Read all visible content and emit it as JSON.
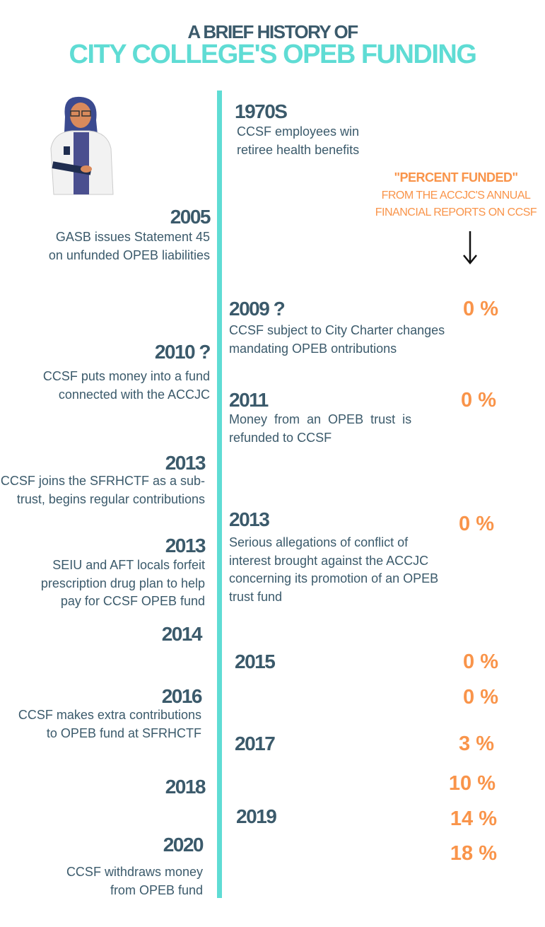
{
  "title": {
    "line1": "A BRIEF HISTORY OF",
    "line2": "CITY COLLEGE'S OPEB FUNDING"
  },
  "note": {
    "heading": "\"PERCENT FUNDED\"",
    "line1": "FROM THE ACCJC'S ANNUAL",
    "line2": "FINANCIAL REPORTS ON CCSF"
  },
  "left_events": [
    {
      "year": "2005",
      "lines": [
        "GASB issues Statement 45",
        "on unfunded OPEB liabilities"
      ]
    },
    {
      "year": "2010 ?",
      "lines": [
        "CCSF puts money into a fund",
        "connected with the ACCJC"
      ]
    },
    {
      "year": "2013",
      "lines": [
        "CCSF joins the SFRHCTF as a sub-",
        "trust, begins regular contributions"
      ]
    },
    {
      "year": "2013",
      "lines": [
        "SEIU and AFT locals forfeit",
        "prescription drug plan to help",
        "pay for CCSF OPEB fund"
      ]
    },
    {
      "year": "2014",
      "lines": []
    },
    {
      "year": "2016",
      "lines": [
        "CCSF makes extra contributions",
        "to OPEB fund at SFRHCTF"
      ]
    },
    {
      "year": "2018",
      "lines": []
    },
    {
      "year": "2020",
      "lines": [
        "CCSF withdraws money",
        "from OPEB fund"
      ]
    }
  ],
  "right_events": [
    {
      "year": "1970S",
      "lines": [
        "CCSF employees win",
        "retiree health benefits"
      ]
    },
    {
      "year": "2009 ?",
      "lines": [
        "CCSF subject to City Charter changes",
        "mandating OPEB ontributions"
      ]
    },
    {
      "year": "2011",
      "lines": [
        "Money  from  an  OPEB  trust  is",
        "refunded to CCSF"
      ]
    },
    {
      "year": "2013",
      "lines": [
        "Serious allegations of conflict of",
        "interest brought against the ACCJC",
        "concerning its promotion of an OPEB",
        "trust fund"
      ]
    },
    {
      "year": "2015",
      "lines": []
    },
    {
      "year": "2017",
      "lines": []
    },
    {
      "year": "2019",
      "lines": []
    }
  ],
  "percent_funded": [
    "0 %",
    "0 %",
    "0 %",
    "0 %",
    "0 %",
    "3 %",
    "10 %",
    "14 %",
    "18 %"
  ],
  "colors": {
    "dark": "#3b5a6b",
    "teal": "#5fdcd4",
    "orange": "#f9944a"
  }
}
